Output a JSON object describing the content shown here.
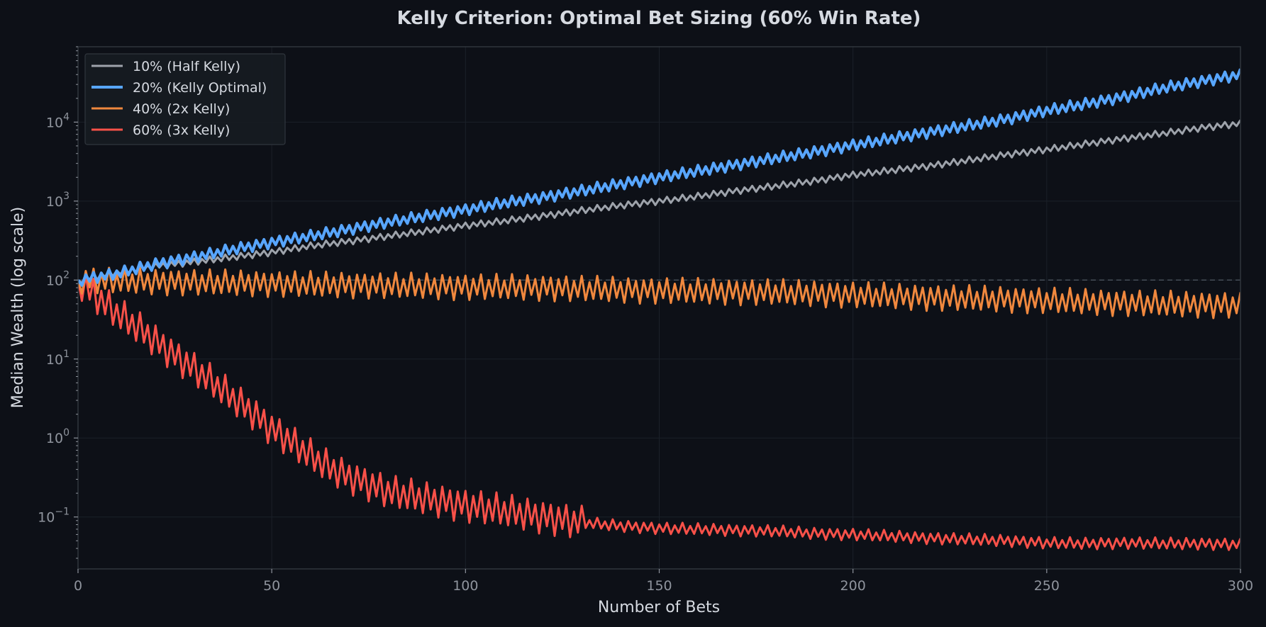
{
  "chart_data": {
    "type": "line",
    "title": "Kelly Criterion: Optimal Bet Sizing (60% Win Rate)",
    "xlabel": "Number of Bets",
    "ylabel": "Median Wealth (log scale)",
    "xlim": [
      0,
      300
    ],
    "ylim": [
      0.022,
      90000
    ],
    "yscale": "log",
    "grid": true,
    "legend_position": "top-left",
    "xticks": [
      0,
      50,
      100,
      150,
      200,
      250,
      300
    ],
    "yticks": [
      {
        "value": 0.1,
        "base": "10",
        "exp": "−1"
      },
      {
        "value": 1,
        "base": "10",
        "exp": "0"
      },
      {
        "value": 10,
        "base": "10",
        "exp": "1"
      },
      {
        "value": 100,
        "base": "10",
        "exp": "2"
      },
      {
        "value": 1000,
        "base": "10",
        "exp": "3"
      },
      {
        "value": 10000,
        "base": "10",
        "exp": "4"
      }
    ],
    "reference_line": {
      "y": 100,
      "style": "dashed"
    },
    "series": [
      {
        "name": "10% (Half Kelly)",
        "color": "#9ea3ab",
        "x": [
          0,
          10,
          20,
          30,
          40,
          50,
          60,
          70,
          80,
          90,
          100,
          110,
          120,
          130,
          140,
          150,
          160,
          170,
          180,
          190,
          200,
          210,
          220,
          230,
          240,
          250,
          260,
          270,
          280,
          290,
          300
        ],
        "y": [
          100,
          125,
          150,
          170,
          195,
          225,
          270,
          310,
          360,
          420,
          490,
          560,
          650,
          760,
          880,
          1000,
          1150,
          1350,
          1550,
          1800,
          2150,
          2450,
          2800,
          3300,
          3900,
          4500,
          5300,
          6200,
          7200,
          8500,
          9600
        ],
        "zigzag": 0.045
      },
      {
        "name": "20% (Kelly Optimal)",
        "color": "#58a6ff",
        "x": [
          0,
          10,
          20,
          30,
          40,
          50,
          60,
          70,
          80,
          90,
          100,
          110,
          120,
          130,
          140,
          150,
          160,
          170,
          180,
          190,
          200,
          210,
          220,
          230,
          240,
          250,
          260,
          270,
          280,
          290,
          300
        ],
        "y": [
          100,
          120,
          160,
          195,
          245,
          300,
          360,
          440,
          540,
          650,
          780,
          950,
          1120,
          1350,
          1650,
          2000,
          2400,
          2900,
          3500,
          4200,
          5100,
          6200,
          7500,
          9100,
          11000,
          14000,
          17000,
          21000,
          27000,
          33000,
          40000
        ],
        "zigzag": 0.075
      },
      {
        "name": "40% (2x Kelly)",
        "color": "#f0883e",
        "x": [
          0,
          20,
          40,
          60,
          80,
          100,
          120,
          140,
          160,
          180,
          200,
          220,
          240,
          260,
          280,
          300
        ],
        "y": [
          100,
          95,
          92,
          88,
          85,
          82,
          80,
          75,
          72,
          70,
          65,
          60,
          57,
          53,
          50,
          48
        ],
        "zigzag": 0.17
      },
      {
        "name": "60% (3x Kelly)",
        "color": "#f85149",
        "x": [
          0,
          5,
          10,
          15,
          20,
          25,
          30,
          35,
          40,
          45,
          50,
          55,
          60,
          65,
          70,
          75,
          80,
          90,
          100,
          110,
          120,
          130,
          140,
          150,
          160,
          170,
          180,
          190,
          200,
          210,
          220,
          230,
          240,
          250,
          260,
          270,
          280,
          290,
          300
        ],
        "y": [
          100,
          60,
          38,
          26,
          17,
          11,
          7.5,
          5,
          3.2,
          2.1,
          1.3,
          0.9,
          0.6,
          0.42,
          0.32,
          0.26,
          0.21,
          0.17,
          0.14,
          0.12,
          0.1,
          0.085,
          0.077,
          0.072,
          0.07,
          0.068,
          0.066,
          0.062,
          0.06,
          0.057,
          0.054,
          0.052,
          0.05,
          0.047,
          0.046,
          0.047,
          0.046,
          0.046,
          0.045
        ],
        "zigzag": 0.22
      }
    ]
  }
}
